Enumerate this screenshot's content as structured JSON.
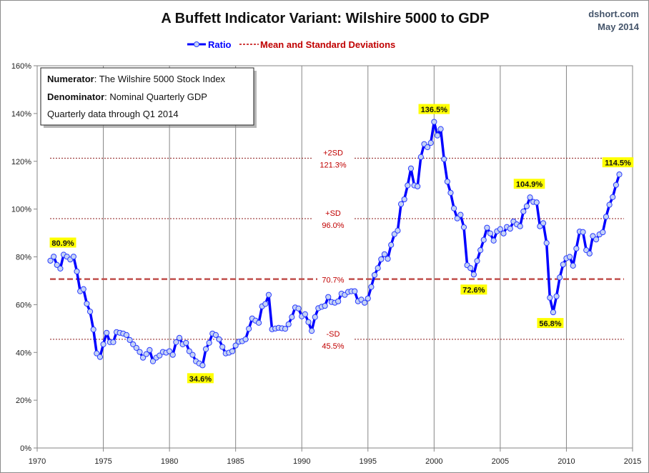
{
  "chart_data": {
    "type": "line",
    "title": "A Buffett Indicator Variant: Wilshire 5000 to GDP",
    "source": "dshort.com",
    "date": "May 2014",
    "xlabel": "",
    "ylabel": "",
    "xlim": [
      1970,
      2015
    ],
    "ylim": [
      0,
      160
    ],
    "x_ticks": [
      "1970",
      "1975",
      "1980",
      "1985",
      "1990",
      "1995",
      "2000",
      "2005",
      "2010",
      "2015"
    ],
    "y_ticks": [
      "0%",
      "20%",
      "40%",
      "60%",
      "80%",
      "100%",
      "120%",
      "140%",
      "160%"
    ],
    "grid": "vertical lines at x ticks",
    "legend_position": "top-center",
    "legend": [
      {
        "label": "Ratio",
        "color": "#0000ff"
      },
      {
        "label": "Mean and Standard Deviations",
        "color": "#c00000"
      }
    ],
    "series": [
      {
        "name": "Ratio",
        "color": "#0000ff",
        "x_start": 1971.0,
        "x_step": 0.25,
        "values": [
          78.4,
          80.1,
          76.6,
          75.1,
          80.9,
          80.1,
          78.9,
          80.1,
          73.9,
          65.6,
          66.5,
          60.4,
          57.1,
          49.6,
          39.6,
          38.1,
          43.4,
          48.2,
          44.3,
          44.3,
          48.5,
          48.2,
          47.9,
          47.3,
          45.2,
          43.4,
          41.9,
          40.2,
          37.8,
          39.3,
          41.0,
          36.3,
          37.8,
          38.7,
          40.2,
          39.9,
          40.5,
          39.0,
          44.3,
          46.1,
          43.4,
          44.0,
          40.5,
          39.0,
          36.3,
          35.4,
          34.6,
          41.4,
          44.0,
          47.9,
          47.3,
          45.5,
          42.3,
          39.6,
          39.9,
          40.5,
          42.9,
          44.5,
          44.7,
          45.5,
          49.9,
          54.2,
          53.3,
          52.4,
          59.3,
          60.3,
          64.1,
          49.7,
          50.0,
          50.3,
          50.1,
          49.9,
          51.8,
          54.8,
          58.8,
          58.4,
          55.1,
          56.0,
          52.7,
          49.0,
          54.8,
          58.5,
          59.1,
          59.5,
          63.2,
          61.1,
          60.8,
          61.4,
          64.6,
          64.1,
          65.3,
          65.6,
          65.6,
          61.4,
          62.1,
          60.8,
          62.6,
          67.4,
          72.4,
          75.3,
          79.0,
          81.1,
          79.2,
          85.0,
          89.5,
          91.0,
          102.1,
          104.1,
          109.9,
          117.0,
          109.9,
          109.5,
          121.8,
          127.2,
          125.9,
          127.7,
          136.5,
          130.8,
          133.5,
          120.9,
          111.5,
          106.8,
          100.3,
          96.1,
          97.6,
          92.4,
          76.5,
          75.3,
          72.6,
          78.3,
          82.8,
          87.1,
          92.2,
          89.8,
          86.8,
          90.7,
          91.6,
          89.8,
          92.5,
          91.8,
          94.8,
          93.6,
          92.8,
          99.0,
          101.2,
          104.9,
          103.0,
          102.8,
          92.8,
          94.1,
          85.8,
          62.9,
          56.8,
          63.5,
          71.4,
          76.8,
          79.4,
          80.0,
          76.3,
          83.5,
          90.6,
          90.4,
          82.8,
          81.4,
          88.7,
          87.3,
          89.4,
          90.3,
          96.8,
          101.8,
          105.0,
          110.1,
          114.5
        ]
      }
    ],
    "reference_lines": [
      {
        "name": "+2SD",
        "label": "+2SD",
        "value_label": "121.3%",
        "value": 121.3
      },
      {
        "name": "+SD",
        "label": "+SD",
        "value_label": "96.0%",
        "value": 96.0
      },
      {
        "name": "Mean",
        "label": "",
        "value_label": "70.7%",
        "value": 70.7
      },
      {
        "name": "-SD",
        "label": "-SD",
        "value_label": "45.5%",
        "value": 45.5
      }
    ],
    "annotations": [
      {
        "text": "80.9%",
        "index": 4
      },
      {
        "text": "34.6%",
        "index": 46
      },
      {
        "text": "136.5%",
        "index": 116
      },
      {
        "text": "72.6%",
        "index": 128
      },
      {
        "text": "104.9%",
        "index": 145
      },
      {
        "text": "56.8%",
        "index": 152
      },
      {
        "text": "114.5%",
        "index": 172
      }
    ],
    "info_box": {
      "numerator_label": "Numerator",
      "numerator_value": ": The Wilshire 5000 Stock Index",
      "denominator_label": "Denominator",
      "denominator_value": ": Nominal Quarterly GDP",
      "note": "Quarterly data through Q1 2014"
    }
  }
}
